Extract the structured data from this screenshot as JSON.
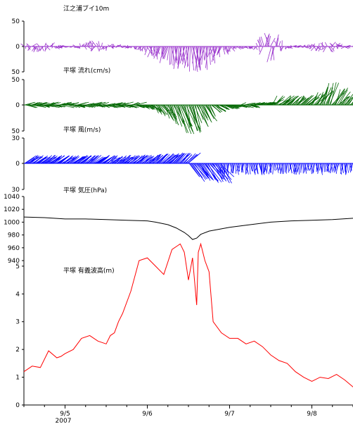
{
  "chart_data": [
    {
      "type": "vector_stick",
      "title": "江之浦ブイ10m",
      "yticks": [
        50,
        0,
        50
      ],
      "ylim": [
        -50,
        50
      ],
      "color": "#9933cc",
      "xlim": [
        "9/4 12:00",
        "9/8 12:00"
      ]
    },
    {
      "type": "vector_stick",
      "title": "平塚 流れ(cm/s)",
      "yticks": [
        50,
        0,
        50
      ],
      "ylim": [
        -50,
        50
      ],
      "color": "#006600"
    },
    {
      "type": "vector_stick",
      "title": "平塚 風(m/s)",
      "yticks": [
        30,
        0,
        30
      ],
      "ylim": [
        -30,
        30
      ],
      "color": "#0000ff"
    },
    {
      "type": "line",
      "title": "平塚 気圧(hPa)",
      "yticks": [
        1040,
        1020,
        1000,
        980,
        960,
        940
      ],
      "ylim": [
        940,
        1040
      ],
      "color": "#000000",
      "x": [
        0,
        0.25,
        0.5,
        0.75,
        1.0,
        1.25,
        1.5,
        1.6,
        1.75,
        1.85,
        1.95,
        2.0,
        2.05,
        2.1,
        2.15,
        2.25,
        2.5,
        2.75,
        3.0,
        3.25,
        3.5,
        3.75,
        4.0
      ],
      "y": [
        1008,
        1007,
        1005,
        1005,
        1004,
        1003,
        1002,
        1000,
        996,
        991,
        984,
        979,
        973,
        975,
        981,
        986,
        992,
        996,
        1000,
        1002,
        1003,
        1004,
        1006
      ]
    },
    {
      "type": "line",
      "title": "平塚 有義波高(m)",
      "yticks": [
        0,
        1,
        2,
        3,
        4,
        5
      ],
      "ylim": [
        0,
        5.2
      ],
      "color": "#ff0000",
      "xticks": [
        "9/5",
        "9/6",
        "9/7",
        "9/8"
      ],
      "xlabel": "2007",
      "x": [
        0,
        0.1,
        0.2,
        0.3,
        0.4,
        0.45,
        0.5,
        0.6,
        0.7,
        0.8,
        0.9,
        1.0,
        1.05,
        1.1,
        1.15,
        1.2,
        1.3,
        1.4,
        1.5,
        1.6,
        1.7,
        1.8,
        1.9,
        1.95,
        2.0,
        2.05,
        2.1,
        2.12,
        2.15,
        2.2,
        2.25,
        2.3,
        2.4,
        2.5,
        2.6,
        2.7,
        2.8,
        2.9,
        3.0,
        3.1,
        3.2,
        3.3,
        3.4,
        3.5,
        3.6,
        3.7,
        3.8,
        3.9,
        4.0
      ],
      "y": [
        1.2,
        1.4,
        1.35,
        1.95,
        1.7,
        1.75,
        1.85,
        2.0,
        2.4,
        2.5,
        2.3,
        2.2,
        2.5,
        2.6,
        3.0,
        3.3,
        4.1,
        5.2,
        5.3,
        5.0,
        4.7,
        5.6,
        5.8,
        5.5,
        4.5,
        5.3,
        3.6,
        5.5,
        5.8,
        5.2,
        4.8,
        3.0,
        2.6,
        2.4,
        2.4,
        2.2,
        2.3,
        2.1,
        1.8,
        1.6,
        1.5,
        1.2,
        1.0,
        0.85,
        1.0,
        0.95,
        1.1,
        0.9,
        0.65
      ]
    }
  ]
}
